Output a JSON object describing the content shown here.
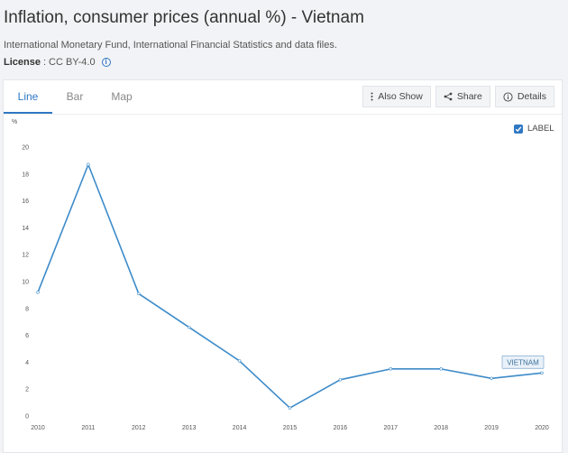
{
  "header": {
    "title": "Inflation, consumer prices (annual %) - Vietnam",
    "source": "International Monetary Fund, International Financial Statistics and data files.",
    "license_label": "License",
    "license_sep": ":",
    "license_value": "CC BY-4.0"
  },
  "tabs": [
    {
      "label": "Line",
      "active": true
    },
    {
      "label": "Bar",
      "active": false
    },
    {
      "label": "Map",
      "active": false
    }
  ],
  "toolbar": {
    "also_show": "Also Show",
    "share": "Share",
    "details": "Details"
  },
  "label_toggle": {
    "text": "LABEL",
    "checked": true
  },
  "colors": {
    "line": "#3d8bc9",
    "accent": "#2f78c4"
  },
  "chart_data": {
    "type": "line",
    "x": [
      2010,
      2011,
      2012,
      2013,
      2014,
      2015,
      2016,
      2017,
      2018,
      2019,
      2020
    ],
    "series": [
      {
        "name": "VIETNAM",
        "values": [
          9.2,
          18.7,
          9.1,
          6.6,
          4.1,
          0.6,
          2.7,
          3.5,
          3.5,
          2.8,
          3.2
        ]
      }
    ],
    "y_unit": "%",
    "ylim": [
      0,
      20
    ],
    "yticks": [
      0,
      2,
      4,
      6,
      8,
      10,
      12,
      14,
      16,
      18,
      20
    ],
    "grid": false,
    "series_label": "VIETNAM"
  }
}
